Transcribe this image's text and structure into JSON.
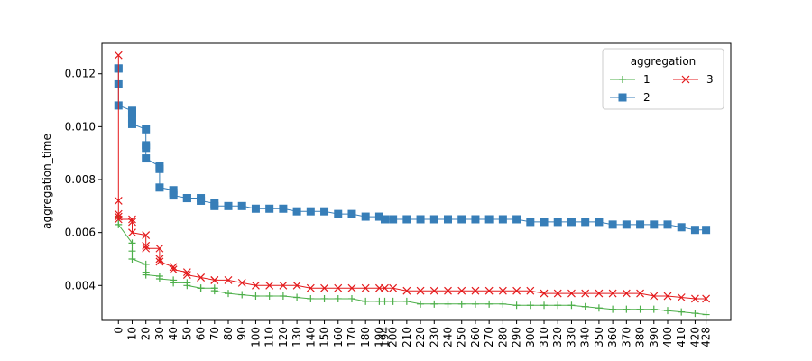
{
  "chart_data": {
    "type": "line",
    "title": "",
    "xlabel": "",
    "ylabel": "aggregation_time",
    "xlim": [
      -12,
      446
    ],
    "ylim": [
      0.00268,
      0.01315
    ],
    "yticks": [
      0.004,
      0.006,
      0.008,
      0.01,
      0.012
    ],
    "ytick_labels": [
      "0.004",
      "0.006",
      "0.008",
      "0.010",
      "0.012"
    ],
    "xticks": [
      0,
      10,
      20,
      30,
      40,
      50,
      60,
      70,
      80,
      90,
      100,
      110,
      120,
      130,
      140,
      150,
      160,
      170,
      180,
      190,
      194,
      200,
      210,
      220,
      230,
      240,
      250,
      260,
      270,
      280,
      290,
      300,
      310,
      320,
      330,
      340,
      350,
      360,
      370,
      380,
      390,
      400,
      410,
      420,
      428
    ],
    "xtick_labels": [
      "0",
      "10",
      "20",
      "30",
      "40",
      "50",
      "60",
      "70",
      "80",
      "90",
      "100",
      "110",
      "120",
      "130",
      "140",
      "150",
      "160",
      "170",
      "180",
      "190",
      "194",
      "200",
      "210",
      "220",
      "230",
      "240",
      "250",
      "260",
      "270",
      "280",
      "290",
      "300",
      "310",
      "320",
      "330",
      "340",
      "350",
      "360",
      "370",
      "380",
      "390",
      "400",
      "410",
      "420",
      "428"
    ],
    "legend": {
      "title": "aggregation",
      "position": "top-right"
    },
    "series": [
      {
        "name": "1",
        "color": "#4daf4a",
        "marker": "plus",
        "x": [
          0,
          0,
          10,
          10,
          10,
          20,
          20,
          20,
          30,
          30,
          40,
          40,
          50,
          50,
          60,
          60,
          70,
          70,
          80,
          90,
          100,
          110,
          120,
          130,
          140,
          150,
          160,
          170,
          180,
          190,
          194,
          200,
          210,
          220,
          230,
          240,
          250,
          260,
          270,
          280,
          290,
          300,
          310,
          320,
          330,
          340,
          350,
          360,
          370,
          380,
          390,
          400,
          410,
          420,
          428
        ],
        "y": [
          0.0066,
          0.0063,
          0.0056,
          0.0053,
          0.005,
          0.0048,
          0.0045,
          0.0044,
          0.00435,
          0.00425,
          0.0042,
          0.0041,
          0.0041,
          0.004,
          0.0039,
          0.0039,
          0.0039,
          0.0038,
          0.0037,
          0.00365,
          0.0036,
          0.0036,
          0.0036,
          0.00355,
          0.0035,
          0.0035,
          0.0035,
          0.0035,
          0.0034,
          0.0034,
          0.0034,
          0.0034,
          0.0034,
          0.0033,
          0.0033,
          0.0033,
          0.0033,
          0.0033,
          0.0033,
          0.0033,
          0.00325,
          0.00325,
          0.00325,
          0.00325,
          0.00325,
          0.0032,
          0.00315,
          0.0031,
          0.0031,
          0.0031,
          0.0031,
          0.00305,
          0.003,
          0.00295,
          0.0029
        ]
      },
      {
        "name": "2",
        "color": "#377eb8",
        "marker": "square",
        "x": [
          0,
          0,
          0,
          0,
          10,
          10,
          10,
          10,
          20,
          20,
          20,
          20,
          30,
          30,
          30,
          40,
          40,
          40,
          50,
          50,
          60,
          60,
          70,
          70,
          80,
          90,
          100,
          110,
          120,
          130,
          140,
          150,
          160,
          170,
          180,
          190,
          194,
          200,
          210,
          220,
          230,
          240,
          250,
          260,
          270,
          280,
          290,
          300,
          310,
          320,
          330,
          340,
          350,
          360,
          370,
          380,
          390,
          400,
          410,
          420,
          428
        ],
        "y": [
          0.0122,
          0.0122,
          0.0116,
          0.0108,
          0.0106,
          0.0105,
          0.0103,
          0.0101,
          0.0099,
          0.0093,
          0.0092,
          0.0088,
          0.0085,
          0.0084,
          0.0077,
          0.0076,
          0.0075,
          0.0074,
          0.0073,
          0.0073,
          0.0073,
          0.0072,
          0.0071,
          0.007,
          0.007,
          0.007,
          0.0069,
          0.0069,
          0.0069,
          0.0068,
          0.0068,
          0.0068,
          0.0067,
          0.0067,
          0.0066,
          0.0066,
          0.0065,
          0.0065,
          0.0065,
          0.0065,
          0.0065,
          0.0065,
          0.0065,
          0.0065,
          0.0065,
          0.0065,
          0.0065,
          0.0064,
          0.0064,
          0.0064,
          0.0064,
          0.0064,
          0.0064,
          0.0063,
          0.0063,
          0.0063,
          0.0063,
          0.0063,
          0.0062,
          0.0061,
          0.0061
        ]
      },
      {
        "name": "3",
        "color": "#e41a1c",
        "marker": "x",
        "x": [
          0,
          0,
          0,
          0,
          0,
          10,
          10,
          10,
          20,
          20,
          20,
          30,
          30,
          30,
          40,
          40,
          50,
          50,
          60,
          60,
          70,
          70,
          80,
          90,
          100,
          110,
          120,
          130,
          140,
          150,
          160,
          170,
          180,
          190,
          194,
          200,
          210,
          220,
          230,
          240,
          250,
          260,
          270,
          280,
          290,
          300,
          310,
          320,
          330,
          340,
          350,
          360,
          370,
          380,
          390,
          400,
          410,
          420,
          428
        ],
        "y": [
          0.0127,
          0.0072,
          0.0067,
          0.0066,
          0.0065,
          0.0065,
          0.0064,
          0.006,
          0.0059,
          0.0055,
          0.0054,
          0.0054,
          0.005,
          0.0049,
          0.0047,
          0.0046,
          0.0045,
          0.0044,
          0.0043,
          0.0043,
          0.0042,
          0.0042,
          0.0042,
          0.0041,
          0.004,
          0.004,
          0.004,
          0.004,
          0.0039,
          0.0039,
          0.0039,
          0.0039,
          0.0039,
          0.0039,
          0.0039,
          0.0039,
          0.0038,
          0.0038,
          0.0038,
          0.0038,
          0.0038,
          0.0038,
          0.0038,
          0.0038,
          0.0038,
          0.0038,
          0.0037,
          0.0037,
          0.0037,
          0.0037,
          0.0037,
          0.0037,
          0.0037,
          0.0037,
          0.0036,
          0.0036,
          0.00355,
          0.0035,
          0.0035
        ]
      }
    ]
  }
}
